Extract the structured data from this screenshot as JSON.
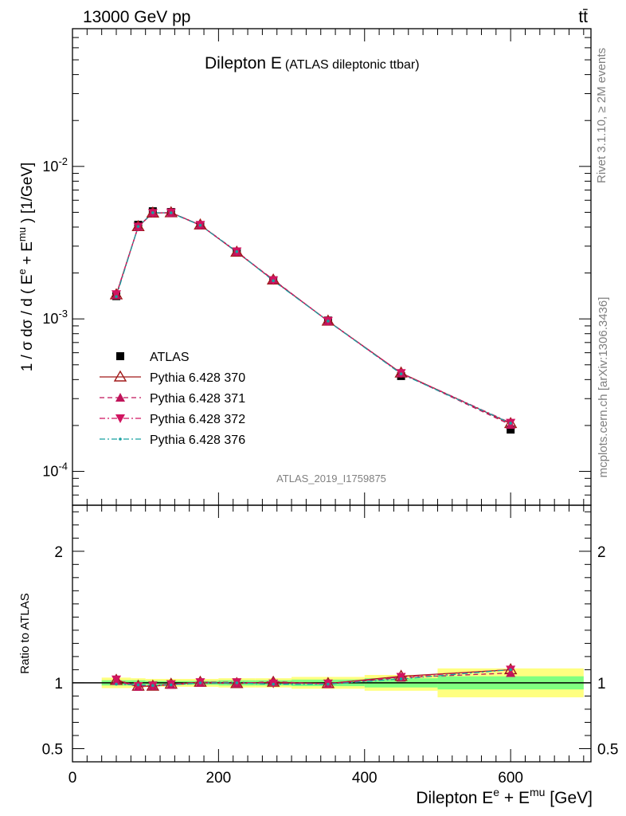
{
  "header": {
    "energy_label": "13000 GeV pp",
    "process_label": "tt̄"
  },
  "side": {
    "rivet_label": "Rivet 3.1.10, ≥ 2M events",
    "mcplots_label": "mcplots.cern.ch [arXiv:1306.3436]"
  },
  "chart_data": [
    {
      "type": "line",
      "title": "Dilepton E",
      "subtitle": "(ATLAS dileptonic ttbar)",
      "watermark": "ATLAS_2019_I1759875",
      "ylabel": "1 / σ  dσ / d ( E^e + E^mu ) [1/GeV]",
      "yscale": "log",
      "ylim": [
        6e-05,
        0.08
      ],
      "xlim": [
        0,
        710
      ],
      "x_tick_labels": [
        "0",
        "200",
        "400",
        "600"
      ],
      "y_tick_labels": [
        "10^-4",
        "10^-3",
        "10^-2"
      ],
      "legend_position": "bottom-left",
      "x": [
        60,
        90,
        110,
        135,
        175,
        225,
        275,
        350,
        450,
        600
      ],
      "series": [
        {
          "name": "ATLAS",
          "color": "#000000",
          "style": "data",
          "values": [
            0.00141,
            0.00414,
            0.00508,
            0.00502,
            0.00411,
            0.00276,
            0.00179,
            0.000975,
            0.000422,
            0.000188
          ]
        },
        {
          "name": "Pythia 6.428 370",
          "color": "#a01818",
          "style": "solid",
          "values": [
            0.00144,
            0.00403,
            0.00495,
            0.00497,
            0.00413,
            0.00274,
            0.0018,
            0.000968,
            0.000442,
            0.000206
          ]
        },
        {
          "name": "Pythia 6.428 371",
          "color": "#c0145a",
          "style": "dashed",
          "values": [
            0.00143,
            0.00402,
            0.00496,
            0.00495,
            0.00412,
            0.00275,
            0.00181,
            0.000965,
            0.00044,
            0.000202
          ]
        },
        {
          "name": "Pythia 6.428 372",
          "color": "#d01460",
          "style": "dashdot",
          "values": [
            0.00145,
            0.00402,
            0.00495,
            0.00498,
            0.00413,
            0.00277,
            0.00179,
            0.00097,
            0.000441,
            0.000208
          ]
        },
        {
          "name": "Pythia 6.428 376",
          "color": "#18a0a0",
          "style": "dashdot",
          "values": [
            0.0014,
            0.00404,
            0.00497,
            0.00496,
            0.00411,
            0.00276,
            0.00178,
            0.000967,
            0.000436,
            0.000207
          ]
        }
      ]
    },
    {
      "type": "line",
      "ylabel": "Ratio to ATLAS",
      "xlabel": "Dilepton E^e + E^mu [GeV]",
      "ylim": [
        0.4,
        2.35
      ],
      "xlim": [
        0,
        710
      ],
      "y_tick_labels": [
        "0.5",
        "1",
        "2"
      ],
      "x_tick_labels": [
        "0",
        "200",
        "400",
        "600"
      ],
      "bands": {
        "edges": [
          40,
          80,
          100,
          120,
          150,
          200,
          250,
          300,
          400,
          500,
          700
        ],
        "inner_half_width": [
          0.02,
          0.02,
          0.015,
          0.015,
          0.015,
          0.02,
          0.02,
          0.025,
          0.035,
          0.05
        ],
        "outer_half_width": [
          0.04,
          0.035,
          0.03,
          0.03,
          0.03,
          0.035,
          0.035,
          0.045,
          0.06,
          0.11
        ],
        "inner_color": "#80ff80",
        "outer_color": "#ffff80"
      },
      "x": [
        60,
        90,
        110,
        135,
        175,
        225,
        275,
        350,
        450,
        600
      ],
      "series": [
        {
          "name": "Pythia 6.428 370",
          "color": "#a01818",
          "style": "solid",
          "values": [
            1.02,
            0.975,
            0.975,
            0.99,
            1.005,
            0.995,
            1.005,
            0.995,
            1.05,
            1.1
          ]
        },
        {
          "name": "Pythia 6.428 371",
          "color": "#c0145a",
          "style": "dashed",
          "values": [
            1.015,
            0.97,
            0.975,
            0.985,
            1.0,
            0.995,
            1.01,
            0.99,
            1.04,
            1.075
          ]
        },
        {
          "name": "Pythia 6.428 372",
          "color": "#d01460",
          "style": "dashdot",
          "values": [
            1.025,
            0.975,
            0.98,
            0.99,
            1.005,
            1.005,
            0.995,
            0.995,
            1.045,
            1.1
          ]
        },
        {
          "name": "Pythia 6.428 376",
          "color": "#18a0a0",
          "style": "dashdot",
          "values": [
            0.99,
            0.985,
            0.98,
            0.985,
            1.0,
            1.0,
            0.99,
            0.99,
            1.03,
            1.1
          ]
        }
      ]
    }
  ]
}
